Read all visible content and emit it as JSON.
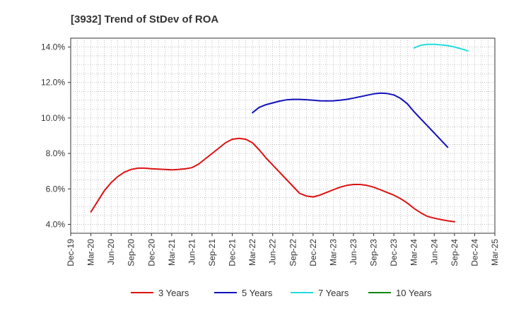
{
  "chart_data": {
    "type": "line",
    "title": "[3932]  Trend of StDev of ROA",
    "xlabel": "",
    "ylabel": "",
    "x_ticks": [
      "Dec-19",
      "Mar-20",
      "Jun-20",
      "Sep-20",
      "Dec-20",
      "Mar-21",
      "Jun-21",
      "Sep-21",
      "Dec-21",
      "Mar-22",
      "Jun-22",
      "Sep-22",
      "Dec-22",
      "Mar-23",
      "Jun-23",
      "Sep-23",
      "Dec-23",
      "Mar-24",
      "Jun-24",
      "Sep-24",
      "Dec-24",
      "Mar-25"
    ],
    "y_ticks": [
      "4.0%",
      "6.0%",
      "8.0%",
      "10.0%",
      "12.0%",
      "14.0%"
    ],
    "y_tick_values": [
      4,
      6,
      8,
      10,
      12,
      14
    ],
    "ylim": [
      3.5,
      14.5
    ],
    "grid": true,
    "legend_position": "bottom",
    "series": [
      {
        "name": "3 Years",
        "color": "#dd1111",
        "points": [
          [
            "Mar-20",
            4.7
          ],
          [
            "Apr-20",
            5.3
          ],
          [
            "May-20",
            5.9
          ],
          [
            "Jun-20",
            6.35
          ],
          [
            "Jul-20",
            6.7
          ],
          [
            "Aug-20",
            6.95
          ],
          [
            "Sep-20",
            7.1
          ],
          [
            "Oct-20",
            7.17
          ],
          [
            "Nov-20",
            7.17
          ],
          [
            "Dec-20",
            7.14
          ],
          [
            "Jan-21",
            7.12
          ],
          [
            "Feb-21",
            7.1
          ],
          [
            "Mar-21",
            7.08
          ],
          [
            "Apr-21",
            7.1
          ],
          [
            "May-21",
            7.13
          ],
          [
            "Jun-21",
            7.2
          ],
          [
            "Jul-21",
            7.4
          ],
          [
            "Aug-21",
            7.7
          ],
          [
            "Sep-21",
            8.0
          ],
          [
            "Oct-21",
            8.3
          ],
          [
            "Nov-21",
            8.6
          ],
          [
            "Dec-21",
            8.8
          ],
          [
            "Jan-22",
            8.85
          ],
          [
            "Feb-22",
            8.8
          ],
          [
            "Mar-22",
            8.6
          ],
          [
            "Apr-22",
            8.2
          ],
          [
            "May-22",
            7.75
          ],
          [
            "Jun-22",
            7.35
          ],
          [
            "Jul-22",
            6.95
          ],
          [
            "Aug-22",
            6.55
          ],
          [
            "Sep-22",
            6.15
          ],
          [
            "Oct-22",
            5.75
          ],
          [
            "Nov-22",
            5.6
          ],
          [
            "Dec-22",
            5.55
          ],
          [
            "Jan-23",
            5.65
          ],
          [
            "Feb-23",
            5.8
          ],
          [
            "Mar-23",
            5.95
          ],
          [
            "Apr-23",
            6.1
          ],
          [
            "May-23",
            6.2
          ],
          [
            "Jun-23",
            6.25
          ],
          [
            "Jul-23",
            6.25
          ],
          [
            "Aug-23",
            6.2
          ],
          [
            "Sep-23",
            6.1
          ],
          [
            "Oct-23",
            5.95
          ],
          [
            "Nov-23",
            5.8
          ],
          [
            "Dec-23",
            5.65
          ],
          [
            "Jan-24",
            5.45
          ],
          [
            "Feb-24",
            5.2
          ],
          [
            "Mar-24",
            4.9
          ],
          [
            "Apr-24",
            4.65
          ],
          [
            "May-24",
            4.45
          ],
          [
            "Jun-24",
            4.35
          ],
          [
            "Jul-24",
            4.27
          ],
          [
            "Aug-24",
            4.2
          ],
          [
            "Sep-24",
            4.15
          ]
        ]
      },
      {
        "name": "5 Years",
        "color": "#1111bb",
        "points": [
          [
            "Mar-22",
            10.3
          ],
          [
            "Apr-22",
            10.6
          ],
          [
            "May-22",
            10.75
          ],
          [
            "Jun-22",
            10.85
          ],
          [
            "Jul-22",
            10.95
          ],
          [
            "Aug-22",
            11.02
          ],
          [
            "Sep-22",
            11.05
          ],
          [
            "Oct-22",
            11.05
          ],
          [
            "Nov-22",
            11.03
          ],
          [
            "Dec-22",
            11.0
          ],
          [
            "Jan-23",
            10.97
          ],
          [
            "Feb-23",
            10.96
          ],
          [
            "Mar-23",
            10.97
          ],
          [
            "Apr-23",
            11.0
          ],
          [
            "May-23",
            11.05
          ],
          [
            "Jun-23",
            11.12
          ],
          [
            "Jul-23",
            11.2
          ],
          [
            "Aug-23",
            11.28
          ],
          [
            "Sep-23",
            11.36
          ],
          [
            "Oct-23",
            11.4
          ],
          [
            "Nov-23",
            11.38
          ],
          [
            "Dec-23",
            11.3
          ],
          [
            "Jan-24",
            11.1
          ],
          [
            "Feb-24",
            10.8
          ],
          [
            "Mar-24",
            10.35
          ],
          [
            "Apr-24",
            9.95
          ],
          [
            "May-24",
            9.55
          ],
          [
            "Jun-24",
            9.15
          ],
          [
            "Jul-24",
            8.75
          ],
          [
            "Aug-24",
            8.35
          ]
        ]
      },
      {
        "name": "7 Years",
        "color": "#22dddd",
        "points": [
          [
            "Mar-24",
            13.95
          ],
          [
            "Apr-24",
            14.1
          ],
          [
            "May-24",
            14.15
          ],
          [
            "Jun-24",
            14.15
          ],
          [
            "Jul-24",
            14.12
          ],
          [
            "Aug-24",
            14.08
          ],
          [
            "Sep-24",
            14.0
          ],
          [
            "Oct-24",
            13.9
          ],
          [
            "Nov-24",
            13.78
          ]
        ]
      },
      {
        "name": "10 Years",
        "color": "#118811",
        "points": []
      }
    ]
  }
}
